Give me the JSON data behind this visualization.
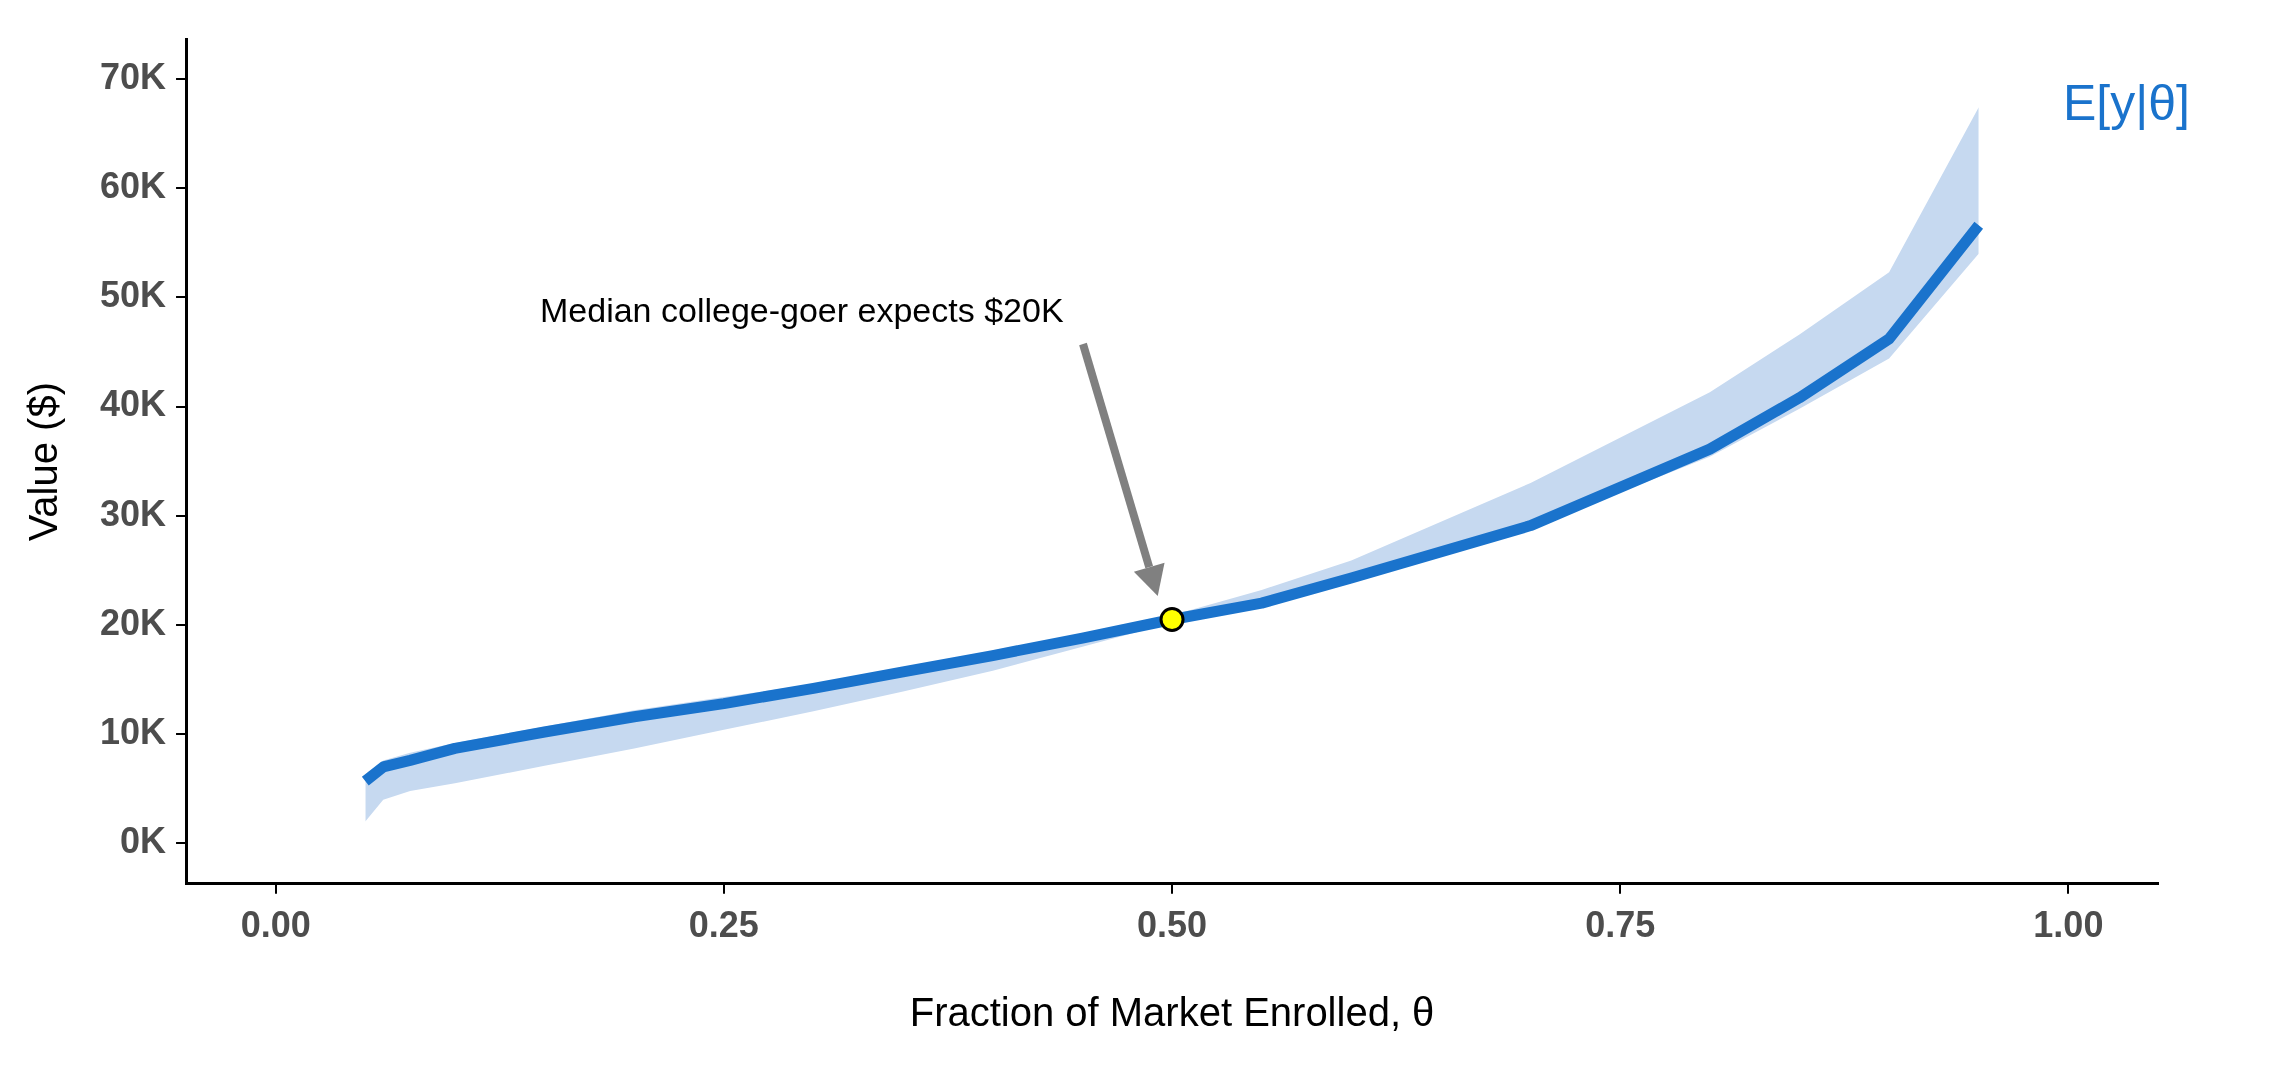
{
  "chart_data": {
    "type": "line",
    "xlabel": "Fraction of Market Enrolled, θ",
    "ylabel": "Value ($)",
    "xlim": [
      -0.05,
      1.05
    ],
    "ylim": [
      -3700,
      73600
    ],
    "xticks": [
      {
        "value": 0,
        "label": "0.00"
      },
      {
        "value": 0.25,
        "label": "0.25"
      },
      {
        "value": 0.5,
        "label": "0.50"
      },
      {
        "value": 0.75,
        "label": "0.75"
      },
      {
        "value": 1,
        "label": "1.00"
      }
    ],
    "yticks": [
      {
        "value": 0,
        "label": "0K"
      },
      {
        "value": 10000,
        "label": "10K"
      },
      {
        "value": 20000,
        "label": "20K"
      },
      {
        "value": 30000,
        "label": "30K"
      },
      {
        "value": 40000,
        "label": "40K"
      },
      {
        "value": 50000,
        "label": "50K"
      },
      {
        "value": 60000,
        "label": "60K"
      },
      {
        "value": 70000,
        "label": "70K"
      }
    ],
    "grid": false,
    "legend": false,
    "marker": "none",
    "line_style": "solid",
    "series": [
      {
        "name": "E[y|θ]",
        "color": "#1a73cc",
        "x": [
          0.05,
          0.06,
          0.075,
          0.1,
          0.15,
          0.2,
          0.25,
          0.3,
          0.35,
          0.4,
          0.45,
          0.5,
          0.55,
          0.6,
          0.7,
          0.8,
          0.85,
          0.9,
          0.95
        ],
        "values": [
          5700,
          7000,
          7600,
          8700,
          10200,
          11600,
          12800,
          14200,
          15700,
          17200,
          18800,
          20500,
          22000,
          24300,
          29100,
          36100,
          40800,
          46200,
          56600
        ],
        "lower": [
          2000,
          4000,
          4800,
          5500,
          7100,
          8700,
          10400,
          12100,
          13900,
          15800,
          18000,
          20200,
          22000,
          24000,
          28900,
          35400,
          39800,
          44400,
          54000
        ],
        "upper": [
          5700,
          7600,
          8300,
          9200,
          10700,
          12200,
          13400,
          14600,
          16000,
          17400,
          19000,
          20900,
          23200,
          25900,
          33000,
          41300,
          46600,
          52300,
          67400
        ]
      },
      {
        "type": "scatter",
        "color": "#ffff00",
        "marker": "circle",
        "x": [
          0.5
        ],
        "values": [
          20500
        ]
      }
    ],
    "annotations": [
      "Median college-goer expects $20K"
    ]
  }
}
